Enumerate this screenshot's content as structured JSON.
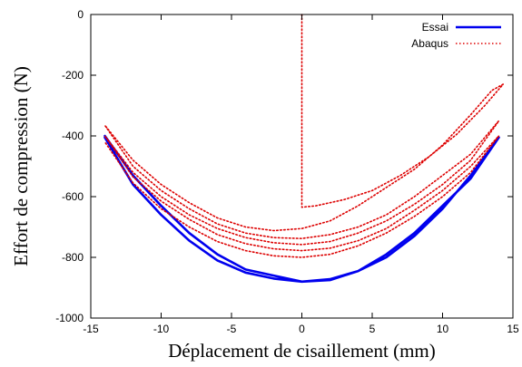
{
  "chart_data": {
    "type": "line",
    "title": "",
    "xlabel": "Déplacement de cisaillement (mm)",
    "ylabel": "Effort de compression (N)",
    "xlim": [
      -15,
      15
    ],
    "ylim": [
      -1000,
      0
    ],
    "xticks": [
      -15,
      -10,
      -5,
      0,
      5,
      10,
      15
    ],
    "yticks": [
      0,
      -200,
      -400,
      -600,
      -800,
      -1000
    ],
    "grid": false,
    "legend_position": "top-right",
    "series": [
      {
        "name": "Essai",
        "color": "#0000ee",
        "style": "solid",
        "points": [
          [
            -14,
            -400
          ],
          [
            -12,
            -530
          ],
          [
            -10,
            -630
          ],
          [
            -8,
            -720
          ],
          [
            -6,
            -790
          ],
          [
            -4,
            -840
          ],
          [
            -2,
            -860
          ],
          [
            0,
            -880
          ],
          [
            2,
            -875
          ],
          [
            4,
            -845
          ],
          [
            6,
            -790
          ],
          [
            8,
            -720
          ],
          [
            10,
            -630
          ],
          [
            12,
            -540
          ],
          [
            14,
            -405
          ],
          [
            12,
            -530
          ],
          [
            10,
            -640
          ],
          [
            8,
            -730
          ],
          [
            6,
            -800
          ],
          [
            4,
            -845
          ],
          [
            2,
            -872
          ],
          [
            0,
            -880
          ],
          [
            -2,
            -870
          ],
          [
            -4,
            -850
          ],
          [
            -6,
            -810
          ],
          [
            -8,
            -745
          ],
          [
            -10,
            -660
          ],
          [
            -12,
            -560
          ],
          [
            -14,
            -405
          ]
        ]
      },
      {
        "name": "Abaqus",
        "color": "#dd0000",
        "style": "dotted",
        "points": [
          [
            0,
            0
          ],
          [
            0,
            -635
          ],
          [
            1,
            -630
          ],
          [
            3,
            -610
          ],
          [
            5,
            -580
          ],
          [
            7,
            -530
          ],
          [
            9,
            -470
          ],
          [
            11,
            -395
          ],
          [
            13,
            -300
          ],
          [
            14.3,
            -230
          ],
          [
            13.5,
            -250
          ],
          [
            12,
            -330
          ],
          [
            10,
            -430
          ],
          [
            8,
            -510
          ],
          [
            6,
            -570
          ],
          [
            4,
            -630
          ],
          [
            2,
            -680
          ],
          [
            0,
            -705
          ],
          [
            -2,
            -712
          ],
          [
            -4,
            -700
          ],
          [
            -6,
            -670
          ],
          [
            -8,
            -620
          ],
          [
            -10,
            -560
          ],
          [
            -12,
            -480
          ],
          [
            -14,
            -365
          ],
          [
            -12,
            -500
          ],
          [
            -10,
            -580
          ],
          [
            -8,
            -640
          ],
          [
            -6,
            -690
          ],
          [
            -4,
            -720
          ],
          [
            -2,
            -735
          ],
          [
            0,
            -738
          ],
          [
            2,
            -725
          ],
          [
            4,
            -700
          ],
          [
            6,
            -660
          ],
          [
            8,
            -600
          ],
          [
            10,
            -530
          ],
          [
            12,
            -460
          ],
          [
            14,
            -350
          ],
          [
            12,
            -480
          ],
          [
            10,
            -560
          ],
          [
            8,
            -625
          ],
          [
            6,
            -680
          ],
          [
            4,
            -720
          ],
          [
            2,
            -748
          ],
          [
            0,
            -758
          ],
          [
            -2,
            -752
          ],
          [
            -4,
            -735
          ],
          [
            -6,
            -705
          ],
          [
            -8,
            -660
          ],
          [
            -10,
            -600
          ],
          [
            -12,
            -520
          ],
          [
            -14,
            -400
          ],
          [
            -12,
            -535
          ],
          [
            -10,
            -615
          ],
          [
            -8,
            -675
          ],
          [
            -6,
            -725
          ],
          [
            -4,
            -755
          ],
          [
            -2,
            -772
          ],
          [
            0,
            -778
          ],
          [
            2,
            -770
          ],
          [
            4,
            -745
          ],
          [
            6,
            -705
          ],
          [
            8,
            -645
          ],
          [
            10,
            -580
          ],
          [
            12,
            -500
          ],
          [
            14,
            -400
          ],
          [
            12,
            -520
          ],
          [
            10,
            -600
          ],
          [
            8,
            -665
          ],
          [
            6,
            -720
          ],
          [
            4,
            -762
          ],
          [
            2,
            -790
          ],
          [
            0,
            -800
          ],
          [
            -2,
            -795
          ],
          [
            -4,
            -778
          ],
          [
            -6,
            -748
          ],
          [
            -8,
            -700
          ],
          [
            -10,
            -640
          ],
          [
            -12,
            -555
          ],
          [
            -14,
            -420
          ]
        ]
      }
    ]
  }
}
